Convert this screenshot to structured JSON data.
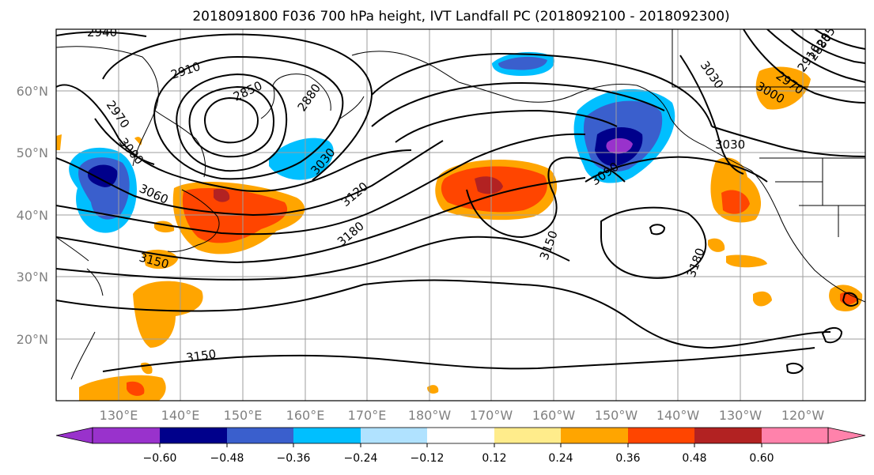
{
  "title": "2018091800 F036 700 hPa height, IVT Landfall PC (2018092100 - 2018092300)",
  "map": {
    "lat_ticks": [
      "60°N",
      "50°N",
      "40°N",
      "30°N",
      "20°N"
    ],
    "lon_ticks": [
      "130°E",
      "140°E",
      "150°E",
      "160°E",
      "170°E",
      "180°W",
      "170°W",
      "160°W",
      "150°W",
      "140°W",
      "130°W",
      "120°W"
    ],
    "contour_labels": [
      "2940",
      "2910",
      "2850",
      "2880",
      "2970",
      "3000",
      "3030",
      "3060",
      "3120",
      "3180",
      "3150",
      "3090",
      "3150",
      "3180",
      "3150",
      "3030",
      "3030",
      "2970",
      "3000",
      "2850",
      "2880",
      "2910"
    ],
    "colors": {
      "contour": "#000000",
      "grid": "#9e9e9e",
      "coast": "#000000"
    }
  },
  "colorbar": {
    "ticks": [
      "−0.60",
      "−0.48",
      "−0.36",
      "−0.24",
      "−0.12",
      "0.12",
      "0.24",
      "0.36",
      "0.48",
      "0.60"
    ],
    "colors": [
      "#9932cc",
      "#00008b",
      "#3a5fcd",
      "#00bfff",
      "#b0e2ff",
      "#ffffff",
      "#ffec8b",
      "#ffa500",
      "#ff4500",
      "#b22222",
      "#ff82ab"
    ]
  }
}
